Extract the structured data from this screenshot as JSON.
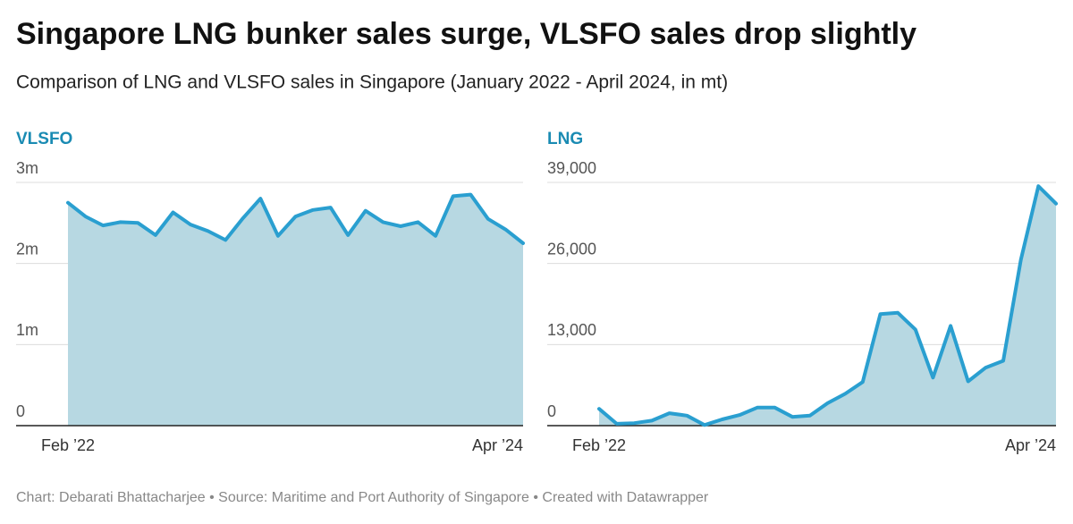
{
  "title": "Singapore LNG bunker sales surge, VLSFO sales drop slightly",
  "subtitle": "Comparison of LNG and VLSFO sales in Singapore (January 2022 - April 2024, in mt)",
  "footer": "Chart: Debarati Bhattacharjee • Source: Maritime and Port Authority of Singapore • Created with Datawrapper",
  "chart_data": [
    {
      "type": "area",
      "title": "VLSFO",
      "categories": [
        "Feb ’22",
        null,
        null,
        null,
        null,
        null,
        null,
        null,
        null,
        null,
        null,
        null,
        null,
        null,
        null,
        null,
        null,
        null,
        null,
        null,
        null,
        null,
        null,
        null,
        null,
        null,
        "Apr ’24"
      ],
      "values": [
        2750000,
        2580000,
        2470000,
        2510000,
        2500000,
        2350000,
        2630000,
        2480000,
        2400000,
        2290000,
        2560000,
        2800000,
        2340000,
        2580000,
        2660000,
        2690000,
        2350000,
        2650000,
        2510000,
        2460000,
        2510000,
        2340000,
        2830000,
        2850000,
        2550000,
        2420000,
        2250000
      ],
      "color": "#2a9fd0",
      "fill": "#b7d8e2",
      "ylim": [
        0,
        3000000
      ],
      "yticks": [
        0,
        {
          "value": 1000000,
          "label": "1m"
        },
        {
          "value": 2000000,
          "label": "2m"
        },
        {
          "value": 3000000,
          "label": "3m"
        }
      ],
      "grid": true
    },
    {
      "type": "area",
      "title": "LNG",
      "categories": [
        "Feb ’22",
        null,
        null,
        null,
        null,
        null,
        null,
        null,
        null,
        null,
        null,
        null,
        null,
        null,
        null,
        null,
        null,
        null,
        null,
        null,
        null,
        null,
        null,
        null,
        null,
        null,
        "Apr ’24"
      ],
      "values": [
        2700,
        300,
        400,
        800,
        2000,
        1600,
        100,
        1000,
        1700,
        2900,
        2900,
        1400,
        1600,
        3600,
        5100,
        7000,
        17900,
        18100,
        15400,
        7700,
        16000,
        7100,
        9300,
        10400,
        26600,
        38400,
        35600
      ],
      "color": "#2a9fd0",
      "fill": "#b7d8e2",
      "ylim": [
        0,
        39000
      ],
      "yticks": [
        0,
        {
          "value": 13000,
          "label": "13,000"
        },
        {
          "value": 26000,
          "label": "26,000"
        },
        {
          "value": 39000,
          "label": "39,000"
        }
      ],
      "grid": true
    }
  ]
}
